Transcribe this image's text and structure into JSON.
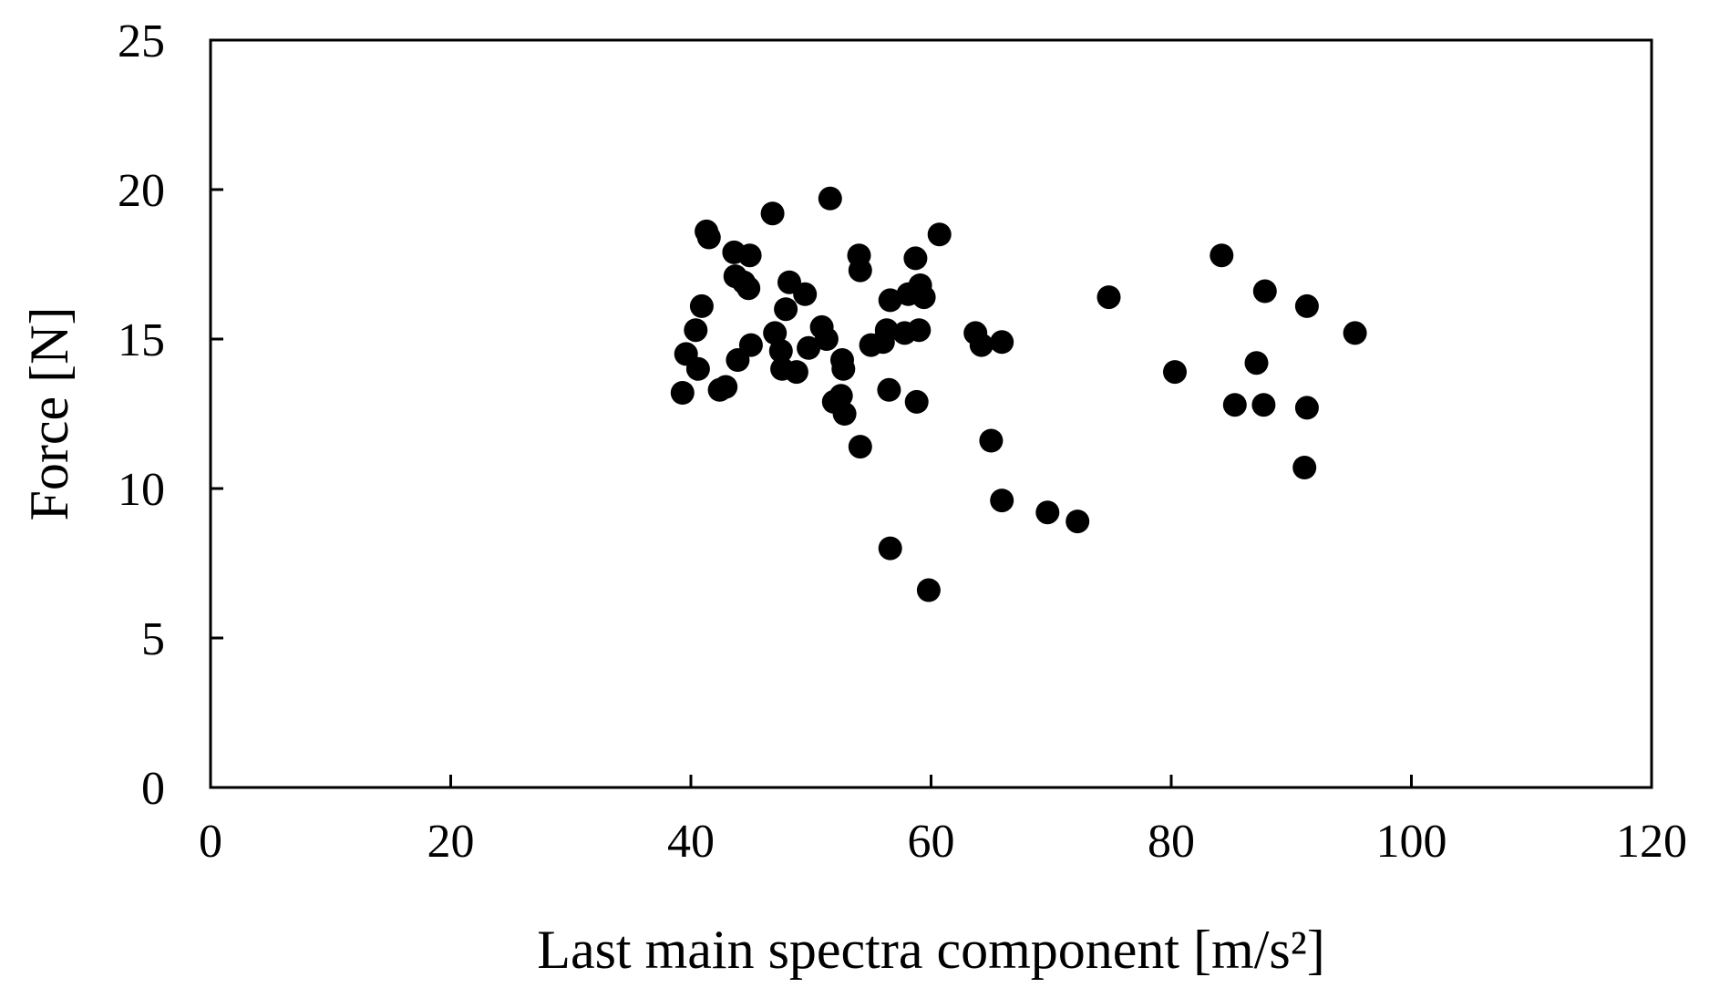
{
  "chart_data": {
    "type": "scatter",
    "title": "",
    "xlabel": "Last main spectra component [m/s²]",
    "ylabel": "Force [N]",
    "xlim": [
      0,
      120
    ],
    "ylim": [
      0,
      25
    ],
    "xticks": [
      0,
      20,
      40,
      60,
      80,
      100,
      120
    ],
    "yticks": [
      0,
      5,
      10,
      15,
      20,
      25
    ],
    "grid": false,
    "legend": "none",
    "marker_color": "#000000",
    "series": [
      {
        "points": [
          [
            39.3,
            13.2
          ],
          [
            39.6,
            14.5
          ],
          [
            40.4,
            15.3
          ],
          [
            40.6,
            14.0
          ],
          [
            40.9,
            16.1
          ],
          [
            41.3,
            18.6
          ],
          [
            41.5,
            18.4
          ],
          [
            42.4,
            13.3
          ],
          [
            42.9,
            13.4
          ],
          [
            43.6,
            17.9
          ],
          [
            43.7,
            17.1
          ],
          [
            43.9,
            14.3
          ],
          [
            44.4,
            16.9
          ],
          [
            44.9,
            17.8
          ],
          [
            44.8,
            16.7
          ],
          [
            45.0,
            14.8
          ],
          [
            46.8,
            19.2
          ],
          [
            47.0,
            15.2
          ],
          [
            47.5,
            14.6
          ],
          [
            47.6,
            14.0
          ],
          [
            47.9,
            16.0
          ],
          [
            48.2,
            16.9
          ],
          [
            48.8,
            13.9
          ],
          [
            49.5,
            16.5
          ],
          [
            49.8,
            14.7
          ],
          [
            50.9,
            15.4
          ],
          [
            51.3,
            15.0
          ],
          [
            51.6,
            19.7
          ],
          [
            51.9,
            12.9
          ],
          [
            52.5,
            13.1
          ],
          [
            52.6,
            14.3
          ],
          [
            52.7,
            14.0
          ],
          [
            52.8,
            12.5
          ],
          [
            54.0,
            17.8
          ],
          [
            54.1,
            17.3
          ],
          [
            54.1,
            11.4
          ],
          [
            55.0,
            14.8
          ],
          [
            56.0,
            14.9
          ],
          [
            56.3,
            15.3
          ],
          [
            56.5,
            13.3
          ],
          [
            56.6,
            16.3
          ],
          [
            56.6,
            8.0
          ],
          [
            57.8,
            15.2
          ],
          [
            58.1,
            16.5
          ],
          [
            58.7,
            17.7
          ],
          [
            58.8,
            12.9
          ],
          [
            59.0,
            15.3
          ],
          [
            59.1,
            16.8
          ],
          [
            59.4,
            16.4
          ],
          [
            59.8,
            6.6
          ],
          [
            60.7,
            18.5
          ],
          [
            63.7,
            15.2
          ],
          [
            64.2,
            14.8
          ],
          [
            65.0,
            11.6
          ],
          [
            65.9,
            9.6
          ],
          [
            65.9,
            14.9
          ],
          [
            69.7,
            9.2
          ],
          [
            72.2,
            8.9
          ],
          [
            74.8,
            16.4
          ],
          [
            80.3,
            13.9
          ],
          [
            84.2,
            17.8
          ],
          [
            85.3,
            12.8
          ],
          [
            87.1,
            14.2
          ],
          [
            87.7,
            12.8
          ],
          [
            87.8,
            16.6
          ],
          [
            91.1,
            10.7
          ],
          [
            91.3,
            16.1
          ],
          [
            91.3,
            12.7
          ],
          [
            95.3,
            15.2
          ]
        ]
      }
    ]
  }
}
